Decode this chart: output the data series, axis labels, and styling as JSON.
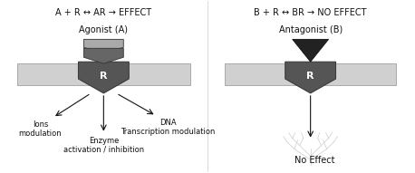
{
  "bg_color": "#ffffff",
  "left_equation": "A + R ↔ AR → EFFECT",
  "right_equation": "B + R ↔ BR → NO EFFECT",
  "left_label": "Agonist (A)",
  "right_label": "Antagonist (B)",
  "receptor_label": "R",
  "left_effects": [
    "Ions\nmodulation",
    "Enzyme\nactivation / inhibition",
    "DNA\nTranscription modulation"
  ],
  "right_effect": "No Effect",
  "membrane_color": "#d0d0d0",
  "membrane_border": "#aaaaaa",
  "receptor_color": "#555555",
  "receptor_edge": "#333333",
  "agonist_top_color": "#aaaaaa",
  "agonist_bot_color": "#666666",
  "antagonist_color": "#222222",
  "arrow_color": "#111111",
  "text_color": "#111111",
  "figsize": [
    4.58,
    1.91
  ],
  "dpi": 100
}
